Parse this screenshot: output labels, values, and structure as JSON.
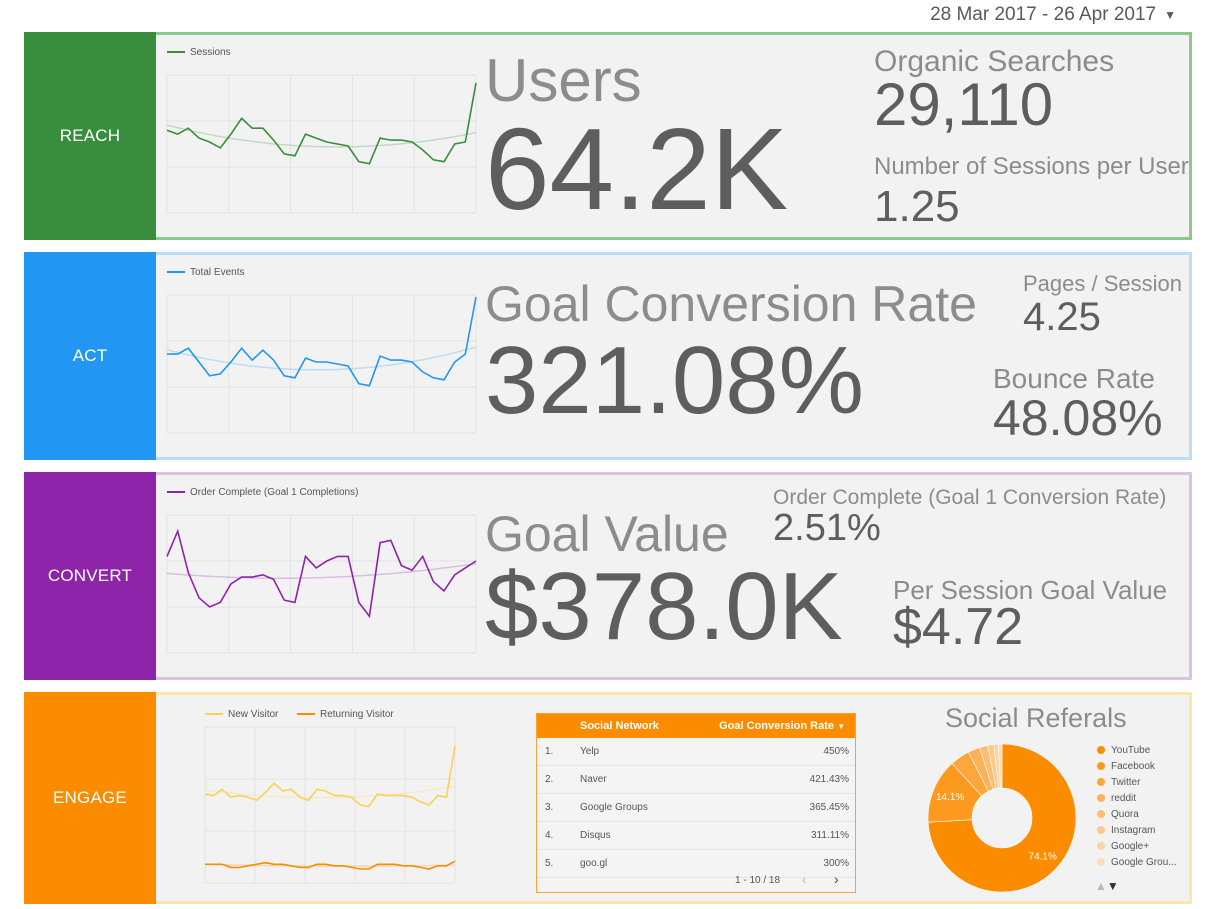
{
  "date_range": "28 Mar 2017 - 26 Apr 2017",
  "colors": {
    "reach": "#388e3c",
    "act": "#2196f3",
    "convert": "#8e24aa",
    "engage": "#fb8c00",
    "new_visitor": "#fdd055",
    "returning_visitor": "#fb8c00"
  },
  "reach": {
    "label": "REACH",
    "chart_legend": "Sessions",
    "chart_data": {
      "type": "line",
      "series": [
        {
          "name": "Sessions",
          "values": [
            62,
            60,
            63,
            58,
            56,
            53,
            60,
            68,
            63,
            63,
            57,
            50,
            49,
            60,
            58,
            56,
            55,
            54,
            46,
            45,
            58,
            57,
            57,
            56,
            52,
            47,
            46,
            55,
            56,
            86
          ]
        }
      ]
    },
    "title": "Users",
    "value": "64.2K",
    "kpi1_label": "Organic Searches",
    "kpi1_value": "29,110",
    "kpi2_label": "Number of Sessions per User",
    "kpi2_value": "1.25"
  },
  "act": {
    "label": "ACT",
    "chart_legend": "Total Events",
    "chart_data": {
      "type": "line",
      "series": [
        {
          "name": "Total Events",
          "values": [
            60,
            60,
            63,
            56,
            49,
            50,
            56,
            63,
            57,
            62,
            57,
            49,
            48,
            58,
            56,
            56,
            55,
            54,
            45,
            44,
            59,
            57,
            57,
            56,
            51,
            48,
            47,
            56,
            60,
            89
          ]
        }
      ]
    },
    "title": "Goal Conversion Rate",
    "value": "321.08%",
    "kpi1_label": "Pages / Session",
    "kpi1_value": "4.25",
    "kpi2_label": "Bounce Rate",
    "kpi2_value": "48.08%"
  },
  "convert": {
    "label": "CONVERT",
    "chart_legend": "Order Complete (Goal 1 Completions)",
    "chart_data": {
      "type": "line",
      "series": [
        {
          "name": "Order Complete (Goal 1 Completions)",
          "values": [
            62,
            73,
            55,
            44,
            40,
            42,
            50,
            53,
            53,
            54,
            52,
            43,
            42,
            62,
            57,
            60,
            62,
            62,
            42,
            36,
            68,
            69,
            58,
            56,
            62,
            51,
            47,
            54,
            57,
            60
          ]
        }
      ]
    },
    "title": "Goal Value",
    "value": "$378.0K",
    "kpi1_label": "Order Complete (Goal 1 Conversion Rate)",
    "kpi1_value": "2.51%",
    "kpi2_label": "Per Session Goal Value",
    "kpi2_value": "$4.72"
  },
  "engage": {
    "label": "ENGAGE",
    "chart_data": {
      "type": "line",
      "series": [
        {
          "name": "New Visitor",
          "values": [
            57,
            56,
            60,
            55,
            56,
            55,
            53,
            58,
            64,
            59,
            60,
            55,
            53,
            60,
            59,
            56,
            56,
            55,
            50,
            49,
            57,
            56,
            56,
            56,
            55,
            52,
            50,
            56,
            55,
            88
          ]
        },
        {
          "name": "Returning Visitor",
          "values": [
            12,
            12,
            12,
            10,
            10,
            11,
            12,
            13,
            12,
            12,
            11,
            10,
            10,
            12,
            12,
            11,
            11,
            10,
            9,
            9,
            12,
            12,
            12,
            11,
            11,
            10,
            9,
            11,
            11,
            14
          ]
        }
      ]
    },
    "table": {
      "headers": [
        "Social Network",
        "Goal Conversion Rate"
      ],
      "rows": [
        {
          "idx": "1.",
          "name": "Yelp",
          "value": "450%"
        },
        {
          "idx": "2.",
          "name": "Naver",
          "value": "421.43%"
        },
        {
          "idx": "3.",
          "name": "Google Groups",
          "value": "365.45%"
        },
        {
          "idx": "4.",
          "name": "Disqus",
          "value": "311.11%"
        },
        {
          "idx": "5.",
          "name": "goo.gl",
          "value": "300%"
        }
      ],
      "pagination": "1 - 10 / 18"
    },
    "pie": {
      "title": "Social Referals",
      "chart_data": {
        "type": "pie",
        "slices": [
          {
            "label": "YouTube",
            "value": 74.1,
            "color": "#fb8c00",
            "data_label": "74.1%"
          },
          {
            "label": "Facebook",
            "value": 14.1,
            "color": "#fb9a1e",
            "data_label": "14.1%"
          },
          {
            "label": "Twitter",
            "value": 4.3,
            "color": "#fca63b",
            "data_label": ""
          },
          {
            "label": "reddit",
            "value": 2.6,
            "color": "#fdb257",
            "data_label": ""
          },
          {
            "label": "Quora",
            "value": 1.8,
            "color": "#fdbd72",
            "data_label": ""
          },
          {
            "label": "Instagram",
            "value": 1.3,
            "color": "#fdc88c",
            "data_label": ""
          },
          {
            "label": "Google+",
            "value": 1.0,
            "color": "#fed2a4",
            "data_label": ""
          },
          {
            "label": "Google Grou...",
            "value": 0.8,
            "color": "#fedcba",
            "data_label": ""
          }
        ]
      }
    }
  }
}
